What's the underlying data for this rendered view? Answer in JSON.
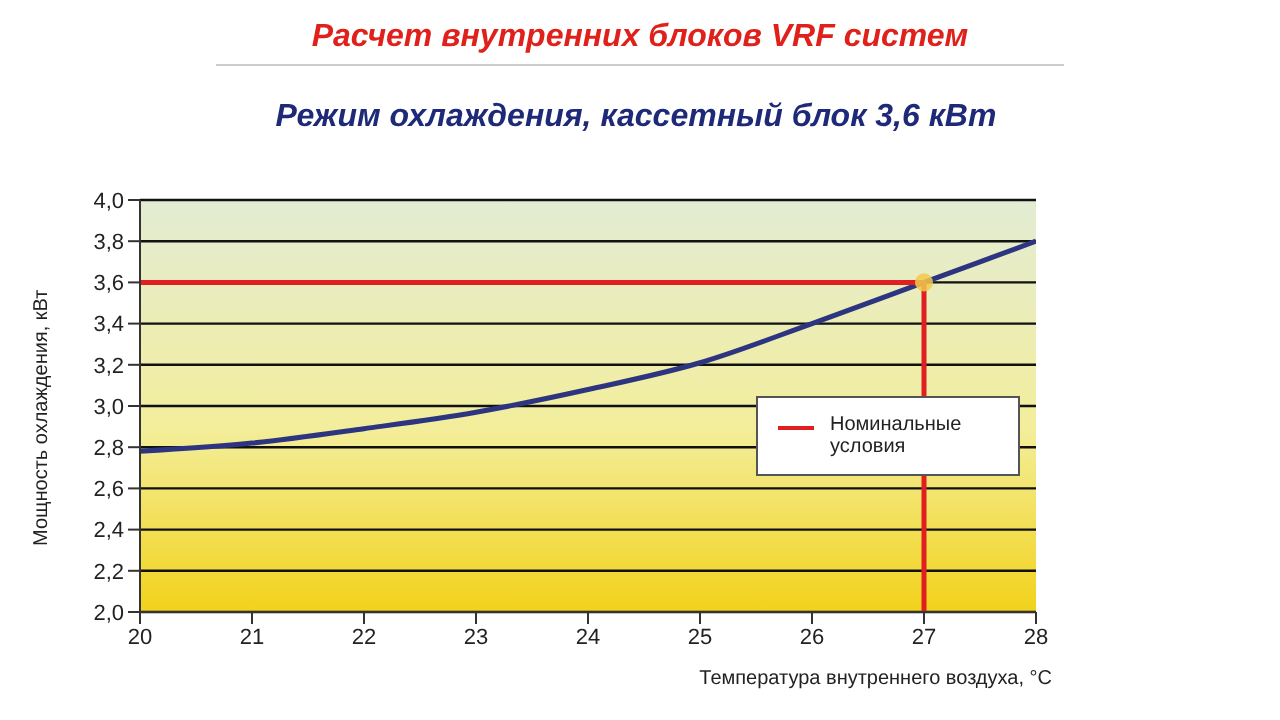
{
  "chart_data": {
    "type": "line",
    "title": "Расчет внутренних блоков VRF систем",
    "subtitle": "Режим охлаждения, кассетный блок 3,6 кВт",
    "xlabel": "Температура внутреннего воздуха, °С",
    "ylabel": "Мощность охлаждения, кВт",
    "series": [
      {
        "color": "#2e3580",
        "x": [
          20,
          21,
          22,
          23,
          24,
          25,
          26,
          27,
          28
        ],
        "values": [
          2.78,
          2.82,
          2.89,
          2.97,
          3.08,
          3.21,
          3.4,
          3.6,
          3.8
        ]
      },
      {
        "name": "Номинальные условия",
        "color": "#e02020",
        "x": [
          20,
          27,
          27
        ],
        "values": [
          3.6,
          3.6,
          2.0
        ]
      },
      {
        "type": "scatter",
        "color": "#f2c94c",
        "marker": "circle",
        "x": [
          27
        ],
        "values": [
          3.6
        ]
      }
    ],
    "xlim": [
      20,
      28
    ],
    "xticks": [
      20,
      21,
      22,
      23,
      24,
      25,
      26,
      27,
      28
    ],
    "ylim": [
      2.0,
      4.0
    ],
    "yticks": [
      {
        "value": 2.0,
        "label": "2,0"
      },
      {
        "value": 2.2,
        "label": "2,2"
      },
      {
        "value": 2.4,
        "label": "2,4"
      },
      {
        "value": 2.6,
        "label": "2,6"
      },
      {
        "value": 2.8,
        "label": "2,8"
      },
      {
        "value": 3.0,
        "label": "3,0"
      },
      {
        "value": 3.2,
        "label": "3,2"
      },
      {
        "value": 3.4,
        "label": "3,4"
      },
      {
        "value": 3.6,
        "label": "3,6"
      },
      {
        "value": 3.8,
        "label": "3,8"
      },
      {
        "value": 4.0,
        "label": "4,0"
      }
    ],
    "grid": "y",
    "legend": "center right",
    "line_style": "solid"
  }
}
